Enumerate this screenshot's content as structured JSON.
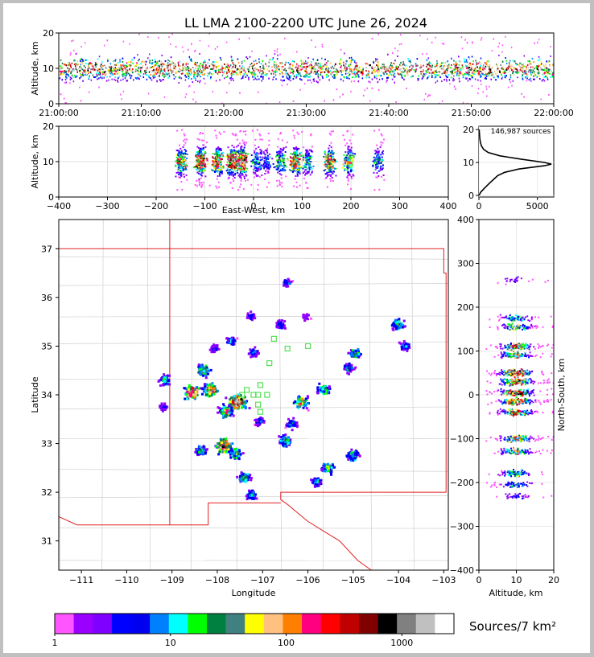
{
  "chart_data": {
    "type": "heatmap",
    "title": "LL LMA 2100-2200 UTC June 26, 2024",
    "panels": {
      "time_height": {
        "xlabel": "",
        "ylabel": "Altitude, km",
        "x_ticks": [
          "21:00:00",
          "21:10:00",
          "21:20:00",
          "21:30:00",
          "21:40:00",
          "21:50:00",
          "22:00:00"
        ],
        "y_ticks": [
          0,
          10,
          20
        ],
        "ylim": [
          0,
          20
        ]
      },
      "ew_height": {
        "xlabel": "East-West, km",
        "ylabel": "Altitude, km",
        "xlim": [
          -400,
          400
        ],
        "x_ticks": [
          -400,
          -300,
          -200,
          -100,
          0,
          100,
          200,
          300,
          400
        ],
        "y_ticks": [
          0,
          10,
          20
        ],
        "ylim": [
          0,
          20
        ]
      },
      "histogram": {
        "annotation": "146,987 sources",
        "x_ticks": [
          0,
          5000
        ],
        "y_ticks": [
          0,
          10,
          20
        ],
        "profile": [
          [
            0,
            5
          ],
          [
            1,
            160
          ],
          [
            2,
            420
          ],
          [
            3,
            700
          ],
          [
            4,
            1000
          ],
          [
            5,
            1300
          ],
          [
            6,
            1600
          ],
          [
            7,
            2200
          ],
          [
            8,
            3400
          ],
          [
            9,
            5600
          ],
          [
            9.5,
            6200
          ],
          [
            10,
            5600
          ],
          [
            11,
            3600
          ],
          [
            12,
            1800
          ],
          [
            13,
            800
          ],
          [
            14,
            400
          ],
          [
            15,
            220
          ],
          [
            16,
            140
          ],
          [
            17,
            90
          ],
          [
            18,
            60
          ],
          [
            19,
            40
          ],
          [
            20,
            20
          ]
        ]
      },
      "plan_view": {
        "xlabel": "Longitude",
        "ylabel": "Latitude",
        "xlim": [
          -111.5,
          -102.9
        ],
        "ylim": [
          30.4,
          37.6
        ],
        "x_ticks": [
          -111,
          -110,
          -109,
          -108,
          -107,
          -106,
          -105,
          -104,
          -103
        ],
        "y_ticks": [
          31,
          32,
          33,
          34,
          35,
          36,
          37
        ]
      },
      "ns_height": {
        "xlabel": "Altitude, km",
        "ylabel": "North-South, km",
        "x_ticks": [
          0,
          10,
          20
        ],
        "y_ticks": [
          -400,
          -300,
          -200,
          -100,
          0,
          100,
          200,
          300,
          400
        ],
        "ylim": [
          -400,
          400
        ]
      }
    },
    "colorbar": {
      "label": "Sources/7 km²",
      "tick_labels": [
        "1",
        "10",
        "100",
        "1000"
      ],
      "colors": [
        "#ff55ff",
        "#9900ff",
        "#8000ff",
        "#0000ff",
        "#0000f0",
        "#0080ff",
        "#00ffff",
        "#00ff00",
        "#008040",
        "#408080",
        "#ffff00",
        "#ffc080",
        "#ff8000",
        "#ff0080",
        "#ff0000",
        "#c00000",
        "#800000",
        "#000000",
        "#808080",
        "#c0c0c0",
        "#ffffff"
      ]
    },
    "storm_cells": [
      {
        "lon": -108.55,
        "lat": 34.05,
        "intensity": 0.85
      },
      {
        "lon": -108.15,
        "lat": 34.1,
        "intensity": 0.7
      },
      {
        "lon": -108.3,
        "lat": 34.5,
        "intensity": 0.55
      },
      {
        "lon": -109.15,
        "lat": 34.3,
        "intensity": 0.4
      },
      {
        "lon": -107.55,
        "lat": 33.85,
        "intensity": 0.95
      },
      {
        "lon": -107.8,
        "lat": 33.65,
        "intensity": 0.6
      },
      {
        "lon": -107.85,
        "lat": 32.95,
        "intensity": 0.8
      },
      {
        "lon": -107.6,
        "lat": 32.8,
        "intensity": 0.5
      },
      {
        "lon": -108.35,
        "lat": 32.85,
        "intensity": 0.4
      },
      {
        "lon": -107.4,
        "lat": 32.3,
        "intensity": 0.45
      },
      {
        "lon": -107.25,
        "lat": 31.95,
        "intensity": 0.35
      },
      {
        "lon": -106.15,
        "lat": 33.85,
        "intensity": 0.6
      },
      {
        "lon": -105.65,
        "lat": 34.1,
        "intensity": 0.5
      },
      {
        "lon": -106.35,
        "lat": 33.4,
        "intensity": 0.35
      },
      {
        "lon": -106.5,
        "lat": 33.05,
        "intensity": 0.45
      },
      {
        "lon": -105.55,
        "lat": 32.5,
        "intensity": 0.5
      },
      {
        "lon": -105.8,
        "lat": 32.2,
        "intensity": 0.35
      },
      {
        "lon": -105.0,
        "lat": 32.75,
        "intensity": 0.45
      },
      {
        "lon": -104.95,
        "lat": 34.85,
        "intensity": 0.45
      },
      {
        "lon": -105.1,
        "lat": 34.55,
        "intensity": 0.35
      },
      {
        "lon": -104.0,
        "lat": 35.45,
        "intensity": 0.45
      },
      {
        "lon": -103.85,
        "lat": 35.0,
        "intensity": 0.3
      },
      {
        "lon": -107.7,
        "lat": 35.1,
        "intensity": 0.3
      },
      {
        "lon": -107.2,
        "lat": 34.85,
        "intensity": 0.3
      },
      {
        "lon": -106.45,
        "lat": 36.3,
        "intensity": 0.25
      },
      {
        "lon": -106.6,
        "lat": 35.45,
        "intensity": 0.25
      },
      {
        "lon": -107.25,
        "lat": 35.6,
        "intensity": 0.2
      },
      {
        "lon": -108.05,
        "lat": 34.95,
        "intensity": 0.2
      },
      {
        "lon": -106.05,
        "lat": 35.6,
        "intensity": 0.15
      },
      {
        "lon": -109.2,
        "lat": 33.75,
        "intensity": 0.2
      },
      {
        "lon": -107.05,
        "lat": 33.45,
        "intensity": 0.25
      }
    ],
    "stations": [
      {
        "lon": -107.2,
        "lat": 34.0
      },
      {
        "lon": -107.05,
        "lat": 34.2
      },
      {
        "lon": -106.85,
        "lat": 34.65
      },
      {
        "lon": -106.75,
        "lat": 35.15
      },
      {
        "lon": -106.45,
        "lat": 34.95
      },
      {
        "lon": -106.0,
        "lat": 35.0
      },
      {
        "lon": -107.45,
        "lat": 34.0
      },
      {
        "lon": -107.35,
        "lat": 34.1
      },
      {
        "lon": -107.1,
        "lat": 34.0
      },
      {
        "lon": -107.1,
        "lat": 33.8
      },
      {
        "lon": -107.05,
        "lat": 33.65
      },
      {
        "lon": -106.9,
        "lat": 34.0
      }
    ]
  }
}
